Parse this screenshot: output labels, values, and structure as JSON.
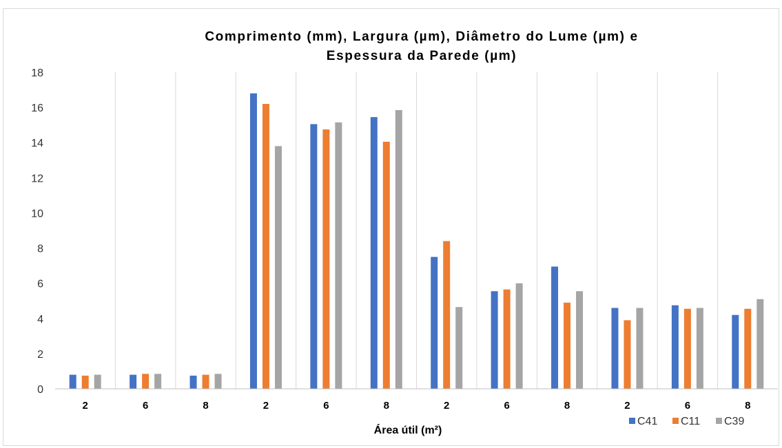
{
  "chart_data": {
    "type": "bar",
    "title": "Comprimento (mm), Largura (µm), Diâmetro do Lume (µm) e",
    "title_line2": "Espessura da Parede (µm)",
    "xlabel": "Área útil (m²)",
    "ylabel": "",
    "ylim": [
      0,
      18
    ],
    "yticks": [
      0,
      2,
      4,
      6,
      8,
      10,
      12,
      14,
      16,
      18
    ],
    "grid": "vertical separators between categories",
    "legend_position": "bottom-right",
    "categories": [
      "2",
      "6",
      "8",
      "2",
      "6",
      "8",
      "2",
      "6",
      "8",
      "2",
      "6",
      "8"
    ],
    "series": [
      {
        "name": "C41",
        "color": "#4472c4",
        "values": [
          0.8,
          0.8,
          0.75,
          16.8,
          15.05,
          15.45,
          7.5,
          5.55,
          6.95,
          4.6,
          4.75,
          4.2
        ]
      },
      {
        "name": "C11",
        "color": "#ed7d31",
        "values": [
          0.75,
          0.85,
          0.8,
          16.2,
          14.75,
          14.05,
          8.4,
          5.65,
          4.9,
          3.9,
          4.55,
          4.55
        ]
      },
      {
        "name": "C39",
        "color": "#a5a5a5",
        "values": [
          0.8,
          0.85,
          0.85,
          13.8,
          15.15,
          15.85,
          4.65,
          6.0,
          5.55,
          4.6,
          4.6,
          5.1
        ]
      }
    ]
  }
}
